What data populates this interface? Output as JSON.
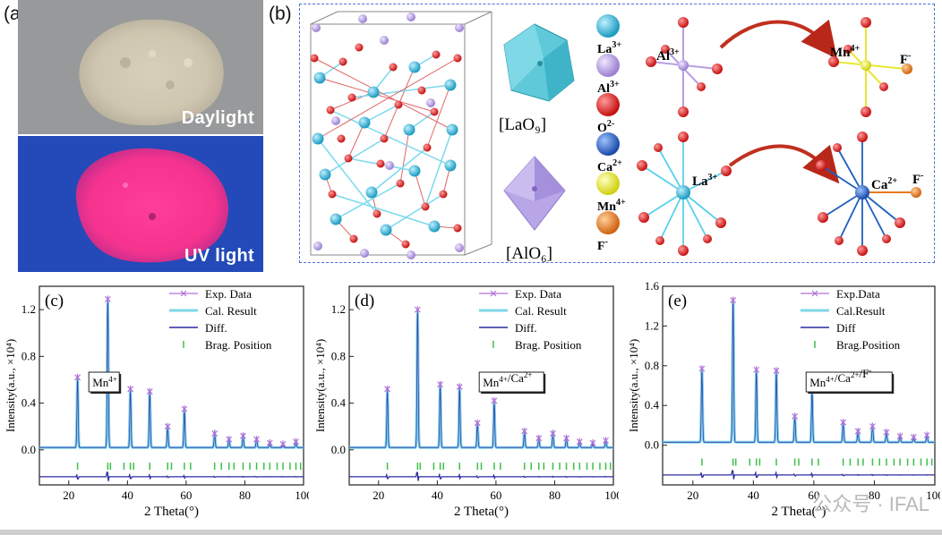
{
  "panel_a": {
    "label": "(a)",
    "top_photo_label": "Daylight",
    "bottom_photo_label": "UV light"
  },
  "panel_b": {
    "label": "(b)",
    "polyhedra": {
      "la": "[LaO₉]",
      "al": "[AlO₆]"
    },
    "legend": [
      {
        "label": "La",
        "sup": "3+",
        "color": "#33b8d8"
      },
      {
        "label": "Al",
        "sup": "3+",
        "color": "#b79ee0"
      },
      {
        "label": "O",
        "sup": "2-",
        "color": "#dd2020"
      },
      {
        "label": "Ca",
        "sup": "2+",
        "color": "#1f5fbf"
      },
      {
        "label": "Mn",
        "sup": "4+",
        "color": "#e8e830"
      },
      {
        "label": "F",
        "sup": "-",
        "color": "#e87a1c"
      }
    ],
    "substitutions": {
      "al": {
        "label": "Al",
        "sup": "3+"
      },
      "mn": {
        "label": "Mn",
        "sup": "4+"
      },
      "la": {
        "label": "La",
        "sup": "3+"
      },
      "ca": {
        "label": "Ca",
        "sup": "2+"
      },
      "f": {
        "label": "F",
        "sup": "-"
      }
    }
  },
  "watermark": "公众号 · IFAL",
  "chart_data": [
    {
      "type": "line",
      "panel": "(c)",
      "sample_label": "Mn4+",
      "xlabel": "2 Theta(°)",
      "ylabel": "Intensity(a.u., ×10⁴)",
      "xlim": [
        10,
        100
      ],
      "ylim": [
        -0.3,
        1.4
      ],
      "xticks": [
        20,
        40,
        60,
        80,
        100
      ],
      "yticks": [
        0.0,
        0.4,
        0.8,
        1.2
      ],
      "legend": [
        "Exp. Data",
        "Cal. Result",
        "Diff.",
        "Brag. Position"
      ],
      "baseline": 0.02,
      "diff_level": -0.23,
      "bragg_level": -0.14,
      "peaks": [
        {
          "x": 23.0,
          "y": 0.6
        },
        {
          "x": 33.3,
          "y": 1.27
        },
        {
          "x": 41.0,
          "y": 0.5
        },
        {
          "x": 47.6,
          "y": 0.48
        },
        {
          "x": 53.7,
          "y": 0.18
        },
        {
          "x": 59.4,
          "y": 0.33
        },
        {
          "x": 69.7,
          "y": 0.12
        },
        {
          "x": 74.6,
          "y": 0.07
        },
        {
          "x": 79.4,
          "y": 0.1
        },
        {
          "x": 84.0,
          "y": 0.07
        },
        {
          "x": 88.5,
          "y": 0.04
        },
        {
          "x": 93.0,
          "y": 0.03
        },
        {
          "x": 97.4,
          "y": 0.05
        }
      ],
      "bragg_positions": [
        23.0,
        33.3,
        34.2,
        38.8,
        41.0,
        42.1,
        47.6,
        53.7,
        55.0,
        59.4,
        61.5,
        69.7,
        72.0,
        74.6,
        76.3,
        79.4,
        81.7,
        84.0,
        86.5,
        88.5,
        91.0,
        93.0,
        95.4,
        97.4,
        99.0
      ]
    },
    {
      "type": "line",
      "panel": "(d)",
      "sample_label": "Mn4+/Ca2+",
      "xlabel": "2 Theta(°)",
      "ylabel": "Intensity(a.u., ×10⁴)",
      "xlim": [
        10,
        100
      ],
      "ylim": [
        -0.3,
        1.4
      ],
      "xticks": [
        20,
        40,
        60,
        80,
        100
      ],
      "yticks": [
        0.0,
        0.4,
        0.8,
        1.2
      ],
      "legend": [
        "Exp. Data",
        "Cal. Result",
        "Diff.",
        "Brag. Position"
      ],
      "baseline": 0.02,
      "diff_level": -0.23,
      "bragg_level": -0.14,
      "peaks": [
        {
          "x": 23.0,
          "y": 0.5
        },
        {
          "x": 33.3,
          "y": 1.18
        },
        {
          "x": 41.0,
          "y": 0.54
        },
        {
          "x": 47.6,
          "y": 0.52
        },
        {
          "x": 53.7,
          "y": 0.21
        },
        {
          "x": 59.4,
          "y": 0.4
        },
        {
          "x": 69.7,
          "y": 0.14
        },
        {
          "x": 74.6,
          "y": 0.08
        },
        {
          "x": 79.4,
          "y": 0.12
        },
        {
          "x": 84.0,
          "y": 0.08
        },
        {
          "x": 88.5,
          "y": 0.05
        },
        {
          "x": 93.0,
          "y": 0.04
        },
        {
          "x": 97.4,
          "y": 0.06
        }
      ],
      "bragg_positions": [
        23.0,
        33.3,
        34.2,
        38.8,
        41.0,
        42.1,
        47.6,
        53.7,
        55.0,
        59.4,
        61.5,
        69.7,
        72.0,
        74.6,
        76.3,
        79.4,
        81.7,
        84.0,
        86.5,
        88.5,
        91.0,
        93.0,
        95.4,
        97.4,
        99.0
      ]
    },
    {
      "type": "line",
      "panel": "(e)",
      "sample_label": "Mn4+/Ca2+/F-",
      "xlabel": "2 Theta(°)",
      "ylabel": "Intensity(a.u., ×10⁴)",
      "xlim": [
        10,
        100
      ],
      "ylim": [
        -0.4,
        1.6
      ],
      "xticks": [
        20,
        40,
        60,
        80,
        100
      ],
      "yticks": [
        0.0,
        0.4,
        0.8,
        1.2,
        1.6
      ],
      "legend": [
        "Exp.Data",
        "Cal.Result",
        "Diff",
        "Brag.Position"
      ],
      "baseline": 0.03,
      "diff_level": -0.3,
      "bragg_level": -0.17,
      "peaks": [
        {
          "x": 23.0,
          "y": 0.74
        },
        {
          "x": 33.3,
          "y": 1.43
        },
        {
          "x": 41.0,
          "y": 0.73
        },
        {
          "x": 47.6,
          "y": 0.72
        },
        {
          "x": 53.7,
          "y": 0.26
        },
        {
          "x": 59.4,
          "y": 0.52
        },
        {
          "x": 69.7,
          "y": 0.2
        },
        {
          "x": 74.6,
          "y": 0.11
        },
        {
          "x": 79.4,
          "y": 0.16
        },
        {
          "x": 84.0,
          "y": 0.1
        },
        {
          "x": 88.5,
          "y": 0.06
        },
        {
          "x": 93.0,
          "y": 0.05
        },
        {
          "x": 97.4,
          "y": 0.07
        }
      ],
      "bragg_positions": [
        23.0,
        33.3,
        34.2,
        38.8,
        41.0,
        42.1,
        47.6,
        53.7,
        55.0,
        59.4,
        61.5,
        69.7,
        72.0,
        74.6,
        76.3,
        79.4,
        81.7,
        84.0,
        86.5,
        88.5,
        91.0,
        93.0,
        95.4,
        97.4,
        99.0
      ]
    }
  ]
}
